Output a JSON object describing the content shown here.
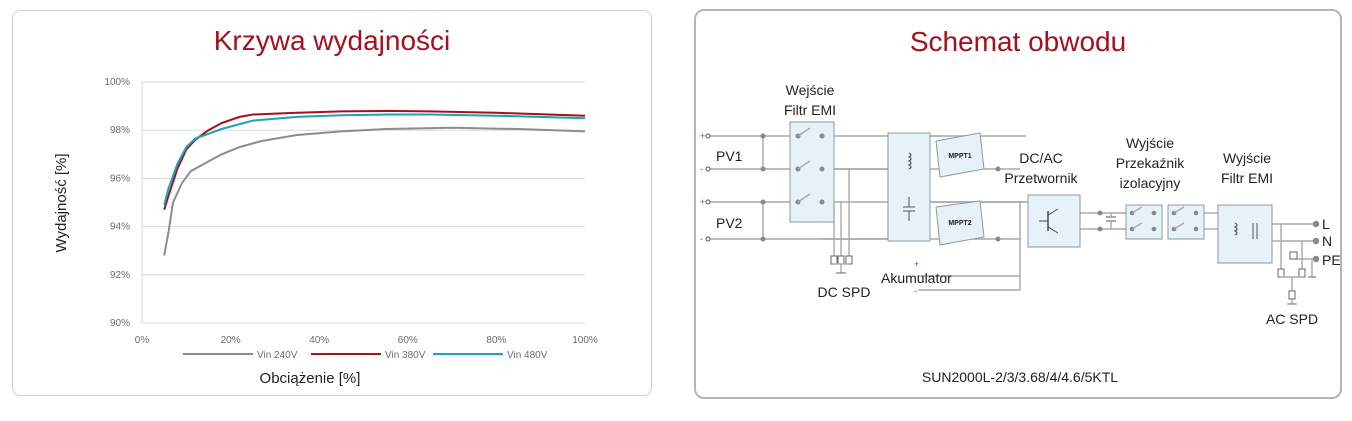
{
  "left_panel": {
    "title": "Krzywa wydajności"
  },
  "chart_data": {
    "type": "line",
    "title": "Krzywa wydajności",
    "xlabel": "Obciążenie [%]",
    "ylabel": "Wydajność [%]",
    "xlim": [
      0,
      100
    ],
    "ylim": [
      90,
      100
    ],
    "xticks": [
      "0%",
      "20%",
      "40%",
      "60%",
      "80%",
      "100%"
    ],
    "yticks": [
      "90%",
      "92%",
      "94%",
      "96%",
      "98%",
      "100%"
    ],
    "grid": "horizontal",
    "legend": "bottom",
    "series": [
      {
        "name": "Vin 240V",
        "color": "#8c8c8c",
        "points": [
          [
            5,
            92.8
          ],
          [
            6,
            93.8
          ],
          [
            7,
            95.0
          ],
          [
            9,
            95.8
          ],
          [
            11,
            96.3
          ],
          [
            14,
            96.6
          ],
          [
            18,
            97.0
          ],
          [
            22,
            97.3
          ],
          [
            27,
            97.55
          ],
          [
            35,
            97.8
          ],
          [
            45,
            97.95
          ],
          [
            55,
            98.05
          ],
          [
            70,
            98.1
          ],
          [
            85,
            98.05
          ],
          [
            100,
            97.95
          ]
        ]
      },
      {
        "name": "Vin 380V",
        "color": "#a3111c",
        "points": [
          [
            5,
            94.7
          ],
          [
            6,
            95.3
          ],
          [
            8,
            96.4
          ],
          [
            10,
            97.2
          ],
          [
            12,
            97.6
          ],
          [
            15,
            98.0
          ],
          [
            18,
            98.3
          ],
          [
            22,
            98.55
          ],
          [
            25,
            98.65
          ],
          [
            35,
            98.72
          ],
          [
            45,
            98.78
          ],
          [
            55,
            98.8
          ],
          [
            65,
            98.78
          ],
          [
            80,
            98.72
          ],
          [
            100,
            98.6
          ]
        ]
      },
      {
        "name": "Vin 480V",
        "color": "#1ba3b8",
        "points": [
          [
            5,
            94.9
          ],
          [
            6,
            95.6
          ],
          [
            8,
            96.6
          ],
          [
            10,
            97.3
          ],
          [
            12,
            97.65
          ],
          [
            15,
            97.85
          ],
          [
            18,
            98.05
          ],
          [
            21,
            98.2
          ],
          [
            25,
            98.4
          ],
          [
            35,
            98.55
          ],
          [
            45,
            98.62
          ],
          [
            55,
            98.65
          ],
          [
            65,
            98.65
          ],
          [
            80,
            98.6
          ],
          [
            100,
            98.5
          ]
        ]
      }
    ]
  },
  "right_panel": {
    "title": "Schemat obwodu",
    "labels": {
      "input_emi_1": "Wejście",
      "input_emi_2": "Filtr EMI",
      "pv1": "PV1",
      "pv2": "PV2",
      "mppt1": "MPPT1",
      "mppt2": "MPPT2",
      "dcac_1": "DC/AC",
      "dcac_2": "Przetwornik",
      "relay_1": "Wyjście",
      "relay_2": "Przekaźnik",
      "relay_3": "izolacyjny",
      "out_emi_1": "Wyjście",
      "out_emi_2": "Filtr EMI",
      "battery": "Akumulator",
      "dc_spd": "DC SPD",
      "ac_spd": "AC SPD",
      "out_l": "L",
      "out_n": "N",
      "out_pe": "PE",
      "plus_sign": "+",
      "minus_sign": "-",
      "model": "SUN2000L-2/3/3.68/4/4.6/5KTL"
    }
  }
}
